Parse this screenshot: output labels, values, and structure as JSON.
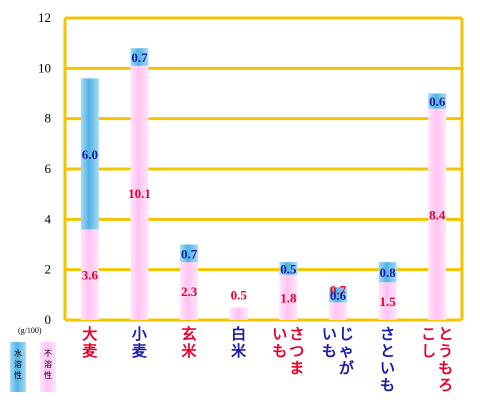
{
  "chart_data": {
    "type": "bar",
    "stacked": true,
    "unit_label": "(g/100)",
    "ylim": [
      0,
      12
    ],
    "yticks": [
      "0",
      "2",
      "4",
      "6",
      "8",
      "10",
      "12"
    ],
    "grid": true,
    "categories": [
      {
        "label": "大麦",
        "lines": [
          "大麦"
        ],
        "color": "#e8002a"
      },
      {
        "label": "小麦",
        "lines": [
          "小麦"
        ],
        "color": "#1a1aa8"
      },
      {
        "label": "玄米",
        "lines": [
          "玄米"
        ],
        "color": "#e8002a"
      },
      {
        "label": "白米",
        "lines": [
          "白米"
        ],
        "color": "#1a1aa8"
      },
      {
        "label": "さつまいも",
        "lines": [
          "さつま",
          "いも"
        ],
        "color": "#e8002a"
      },
      {
        "label": "じゃがいも",
        "lines": [
          "じゃが",
          "いも"
        ],
        "color": "#1a1aa8"
      },
      {
        "label": "さといも",
        "lines": [
          "さといも"
        ],
        "color": "#1a1aa8"
      },
      {
        "label": "とうもろこし",
        "lines": [
          "とうもろ",
          "こし"
        ],
        "color": "#e8002a"
      }
    ],
    "series": [
      {
        "name": "不溶性",
        "values": [
          3.6,
          10.1,
          2.3,
          0.5,
          1.8,
          0.7,
          1.5,
          8.4
        ],
        "label_color": "#e8002a"
      },
      {
        "name": "水溶性",
        "values": [
          6.0,
          0.7,
          0.7,
          0.0,
          0.5,
          0.6,
          0.8,
          0.6
        ],
        "label_color": "#1a1aa8"
      }
    ],
    "colors": {
      "frame": "#f5c400",
      "insoluble_fill": "#ffd0f6",
      "soluble_fill": "#6ec4ee"
    },
    "legend": {
      "placement": "bottom-left",
      "items": [
        "水溶性",
        "不溶性"
      ]
    }
  }
}
